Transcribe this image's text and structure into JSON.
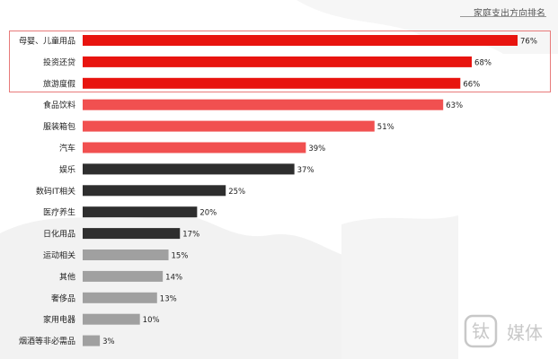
{
  "chart_data": {
    "type": "bar",
    "orientation": "horizontal",
    "title": "家庭支出方向排名",
    "categories": [
      "母婴、儿童用品",
      "投资还贷",
      "旅游度假",
      "食品饮料",
      "服装箱包",
      "汽车",
      "娱乐",
      "数码IT相关",
      "医疗养生",
      "日化用品",
      "运动相关",
      "其他",
      "奢侈品",
      "家用电器",
      "烟酒等非必需品"
    ],
    "values": [
      76,
      68,
      66,
      63,
      51,
      39,
      37,
      25,
      20,
      17,
      15,
      14,
      13,
      10,
      3
    ],
    "value_labels": [
      "76%",
      "68%",
      "66%",
      "63%",
      "51%",
      "39%",
      "37%",
      "25%",
      "20%",
      "17%",
      "15%",
      "14%",
      "13%",
      "10%",
      "3%"
    ],
    "unit": "%",
    "xlim": [
      0,
      100
    ],
    "grid": false,
    "highlighted_categories": [
      "母婴、儿童用品",
      "投资还贷",
      "旅游度假"
    ],
    "colors": {
      "top": "#e8140f",
      "mid": "#f15050",
      "dark": "#2e2e2e",
      "light": "#a0a0a0",
      "highlight_border": "#e87a7a"
    },
    "bar_color_groups": [
      "top",
      "top",
      "top",
      "mid",
      "mid",
      "mid",
      "dark",
      "dark",
      "dark",
      "dark",
      "light",
      "light",
      "light",
      "light",
      "light"
    ]
  },
  "watermark": {
    "text": "钛媒体",
    "icon": "tmtpost-logo"
  }
}
